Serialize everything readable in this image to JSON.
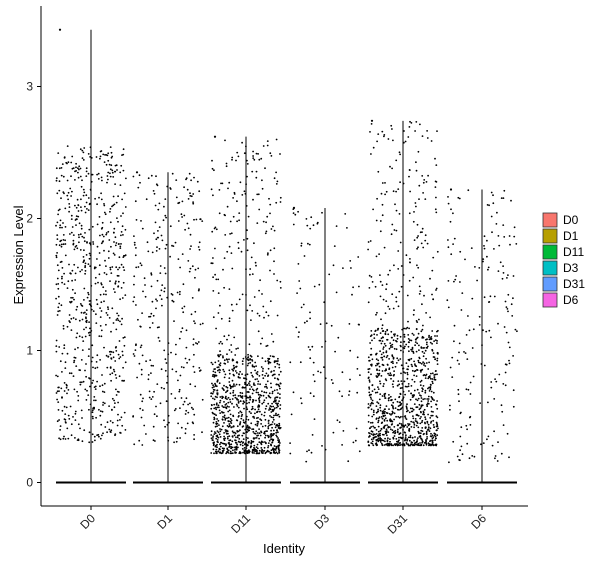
{
  "chart_data": {
    "type": "scatter",
    "subtype": "violin-jitter",
    "title": "",
    "xlabel": "Identity",
    "ylabel": "Expression Level",
    "ylim": [
      -0.2,
      3.5
    ],
    "yticks": [
      "0",
      "1",
      "2",
      "3"
    ],
    "ytick_values": [
      0,
      1,
      2,
      3
    ],
    "categories": [
      "D0",
      "D1",
      "D11",
      "D3",
      "D31",
      "D6"
    ],
    "legend": {
      "position": "right",
      "items": [
        {
          "label": "D0",
          "color": "#F8766D"
        },
        {
          "label": "D1",
          "color": "#B79F00"
        },
        {
          "label": "D11",
          "color": "#00BA38"
        },
        {
          "label": "D3",
          "color": "#00BFC4"
        },
        {
          "label": "D31",
          "color": "#619CFF"
        },
        {
          "label": "D6",
          "color": "#F564E3"
        }
      ]
    },
    "series": [
      {
        "category": "D0",
        "max": 3.43,
        "nonzero_points": 700,
        "low": 0.3,
        "high": 2.55
      },
      {
        "category": "D1",
        "max": 2.35,
        "nonzero_points": 300,
        "low": 0.28,
        "high": 2.35
      },
      {
        "category": "D11",
        "max": 2.62,
        "nonzero_points": 1100,
        "low": 0.22,
        "high": 2.6
      },
      {
        "category": "D3",
        "max": 2.08,
        "nonzero_points": 110,
        "low": 0.15,
        "high": 2.08
      },
      {
        "category": "D31",
        "max": 2.74,
        "nonzero_points": 1100,
        "low": 0.28,
        "high": 2.74
      },
      {
        "category": "D6",
        "max": 2.22,
        "nonzero_points": 180,
        "low": 0.15,
        "high": 2.22
      }
    ],
    "grid": false
  }
}
